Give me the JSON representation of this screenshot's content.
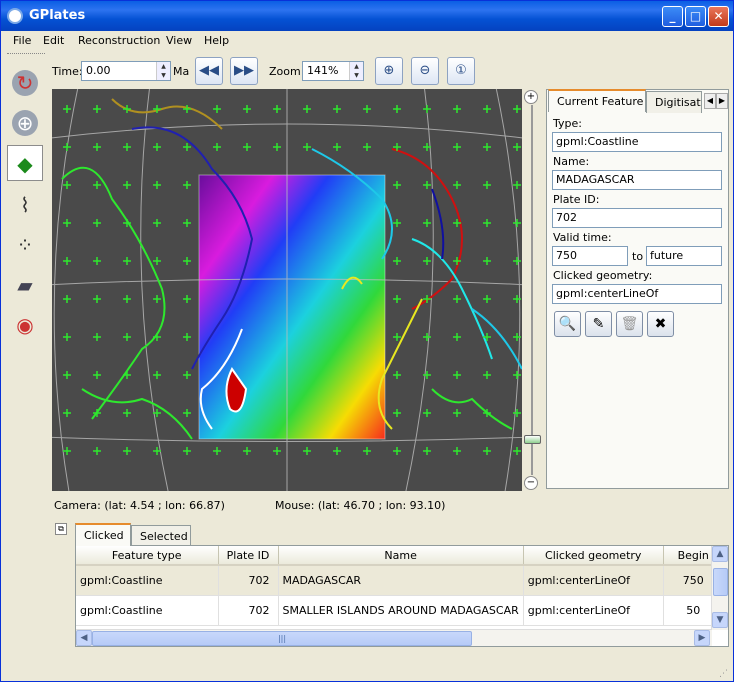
{
  "window": {
    "title": "GPlates",
    "controls": [
      "_",
      "□",
      "✕"
    ]
  },
  "menu": [
    "File",
    "Edit",
    "Reconstruction",
    "View",
    "Help"
  ],
  "toolbar": {
    "time_label": "Time:",
    "time_value": "0.00",
    "time_unit": "Ma",
    "zoom_label": "Zoom:",
    "zoom_value": "141%",
    "icons": [
      "rewind-icon",
      "fast-forward-icon",
      "zoom-in-icon",
      "zoom-out-icon",
      "zoom-reset-icon"
    ]
  },
  "tools": [
    "drag-globe-tool",
    "zoom-globe-tool",
    "click-feature-tool",
    "digitise-polyline-tool",
    "digitise-multipoint-tool",
    "digitise-polygon-tool",
    "manipulate-pole-tool"
  ],
  "panel": {
    "tabs": [
      "Current Feature",
      "Digitisat"
    ],
    "type_label": "Type:",
    "type_value": "gpml:Coastline",
    "name_label": "Name:",
    "name_value": "MADAGASCAR",
    "plate_label": "Plate ID:",
    "plate_value": "702",
    "valid_label": "Valid time:",
    "valid_from": "750",
    "valid_to_label": "to",
    "valid_to": "future",
    "geom_label": "Clicked geometry:",
    "geom_value": "gpml:centerLineOf"
  },
  "status": {
    "camera": "Camera: (lat: 4.54 ; lon: 66.87)",
    "mouse": "Mouse: (lat: 46.70 ; lon: 93.10)"
  },
  "bottom": {
    "tabs": [
      "Clicked",
      "Selected"
    ],
    "columns": [
      "Feature type",
      "Plate ID",
      "Name",
      "Clicked geometry",
      "Begin"
    ],
    "rows": [
      [
        "gpml:Coastline",
        "702",
        "MADAGASCAR",
        "gpml:centerLineOf",
        "750"
      ],
      [
        "gpml:Coastline",
        "702",
        "SMALLER ISLANDS AROUND MADAGASCAR",
        "gpml:centerLineOf",
        "50"
      ]
    ]
  },
  "colors": {
    "accent": "#0552d4",
    "tab_highlight": "#e68b2c",
    "globe_bg": "#000000"
  }
}
